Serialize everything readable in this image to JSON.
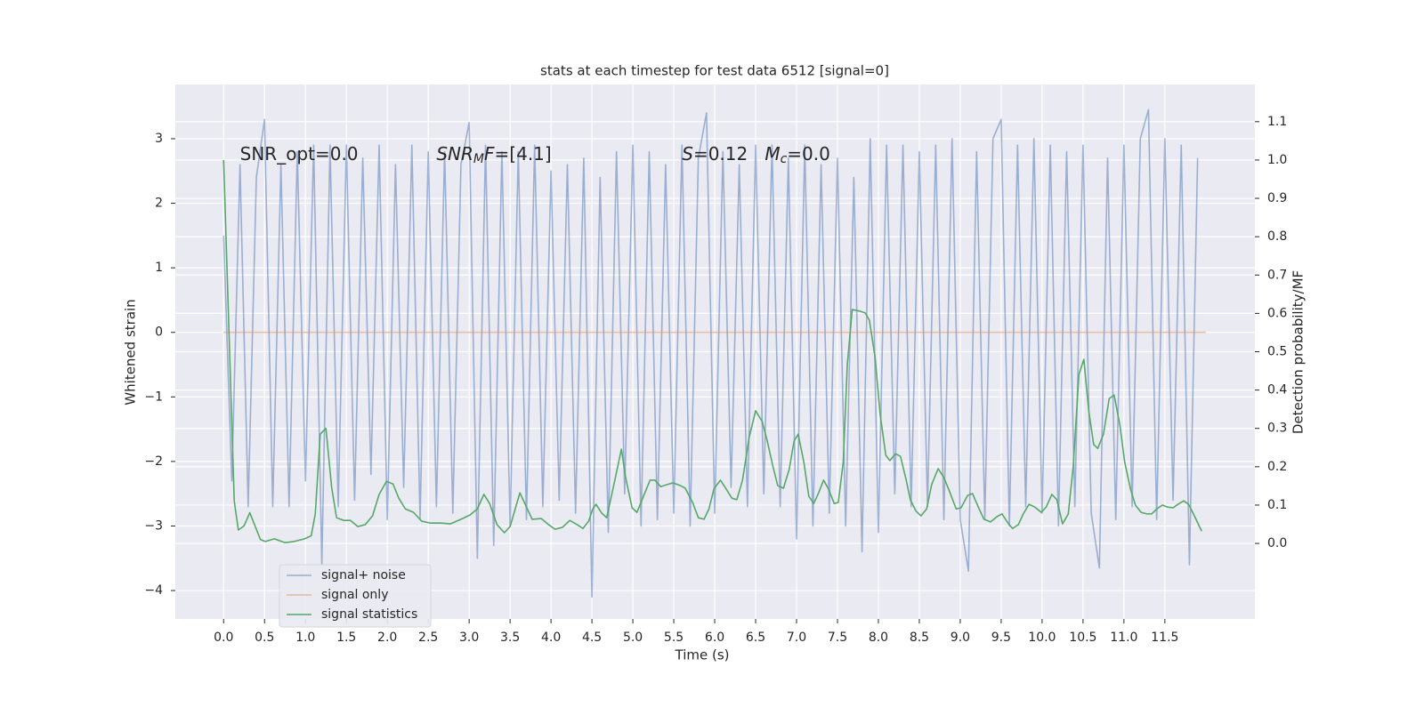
{
  "chart_data": {
    "type": "line",
    "title": "stats at each timestep for test data 6512 [signal=0]",
    "xlabel": "Time (s)",
    "ylabel": "Whitened strain",
    "y2label": "Detection probability/MF",
    "xlim": [
      -0.59,
      12.6
    ],
    "ylim": [
      -4.44,
      3.84
    ],
    "y2lim": [
      -0.197,
      1.197
    ],
    "xticks": [
      {
        "value": 0,
        "label": "0.0"
      },
      0.5,
      {
        "value": 1,
        "label": "1.0"
      },
      1.5,
      {
        "value": 2,
        "label": "2.0"
      },
      2.5,
      {
        "value": 3,
        "label": "3.0"
      },
      3.5,
      {
        "value": 4,
        "label": "4.0"
      },
      4.5,
      {
        "value": 5,
        "label": "5.0"
      },
      5.5,
      {
        "value": 6,
        "label": "6.0"
      },
      6.5,
      {
        "value": 7,
        "label": "7.0"
      },
      7.5,
      {
        "value": 8,
        "label": "8.0"
      },
      8.5,
      {
        "value": 9,
        "label": "9.0"
      },
      9.5,
      {
        "value": 10,
        "label": "10.0"
      },
      10.5,
      {
        "value": 11,
        "label": "11.0"
      },
      11.5
    ],
    "yticks": [
      {
        "value": -4,
        "label": "−4"
      },
      {
        "value": -3,
        "label": "−3"
      },
      {
        "value": -2,
        "label": "−2"
      },
      {
        "value": -1,
        "label": "−1"
      },
      0,
      1,
      2,
      3
    ],
    "y2ticks": [
      {
        "value": 0,
        "label": "0.0"
      },
      0.1,
      0.2,
      0.3,
      0.4,
      0.5,
      0.6,
      0.7,
      0.8,
      0.9,
      {
        "value": 1,
        "label": "1.0"
      },
      1.1
    ],
    "grid": true,
    "legend": "lower left",
    "annotations": [
      {
        "x": 0.2,
        "y": 2.75,
        "parts": [
          {
            "text": "SNR_opt=0.0",
            "style": "normal"
          }
        ]
      },
      {
        "x": 2.6,
        "y": 2.75,
        "parts": [
          {
            "text": "SNR",
            "style": "italic"
          },
          {
            "text": "M",
            "style": "sub"
          },
          {
            "text": "F",
            "style": "italic"
          },
          {
            "text": "=[4.1]",
            "style": "normal"
          }
        ]
      },
      {
        "x": 5.6,
        "y": 2.75,
        "parts": [
          {
            "text": "S",
            "style": "italic"
          },
          {
            "text": "=0.12   ",
            "style": "normal"
          },
          {
            "text": "M",
            "style": "italic"
          },
          {
            "text": "c",
            "style": "sub"
          },
          {
            "text": "=0.0",
            "style": "normal"
          }
        ]
      }
    ],
    "series": [
      {
        "name": "signal+ noise",
        "color": "#4c72b0",
        "opacity": 0.5,
        "x": [
          0.0,
          0.1,
          0.2,
          0.3,
          0.4,
          0.5,
          0.6,
          0.7,
          0.8,
          0.9,
          1.0,
          1.1,
          1.2,
          1.3,
          1.4,
          1.5,
          1.6,
          1.7,
          1.8,
          1.9,
          2.0,
          2.1,
          2.2,
          2.3,
          2.4,
          2.5,
          2.6,
          2.7,
          2.8,
          2.9,
          3.0,
          3.1,
          3.2,
          3.3,
          3.4,
          3.5,
          3.6,
          3.7,
          3.8,
          3.9,
          4.0,
          4.1,
          4.2,
          4.3,
          4.4,
          4.5,
          4.6,
          4.7,
          4.8,
          4.9,
          5.0,
          5.1,
          5.2,
          5.3,
          5.4,
          5.5,
          5.6,
          5.7,
          5.8,
          5.9,
          6.0,
          6.1,
          6.2,
          6.3,
          6.4,
          6.5,
          6.6,
          6.7,
          6.8,
          6.9,
          7.0,
          7.1,
          7.2,
          7.3,
          7.4,
          7.5,
          7.6,
          7.7,
          7.8,
          7.9,
          8.0,
          8.1,
          8.2,
          8.3,
          8.4,
          8.5,
          8.6,
          8.7,
          8.8,
          8.9,
          9.0,
          9.1,
          9.2,
          9.3,
          9.4,
          9.5,
          9.6,
          9.7,
          9.8,
          9.9,
          10.0,
          10.1,
          10.2,
          10.3,
          10.4,
          10.5,
          10.6,
          10.7,
          10.8,
          10.9,
          11.0,
          11.1,
          11.2,
          11.3,
          11.4,
          11.5,
          11.6,
          11.7,
          11.8,
          11.9
        ],
        "values": [
          1.5,
          -2.3,
          2.6,
          -2.7,
          2.4,
          3.3,
          -2.7,
          2.6,
          -2.7,
          2.8,
          -2.3,
          2.9,
          -3.6,
          2.9,
          -2.7,
          2.9,
          -2.6,
          2.7,
          -2.2,
          2.9,
          -2.9,
          2.6,
          -2.4,
          2.9,
          -2.9,
          2.8,
          -2.7,
          2.8,
          -2.8,
          2.6,
          3.25,
          -3.5,
          2.9,
          -3.3,
          2.8,
          -3.0,
          2.8,
          -2.9,
          2.9,
          -2.7,
          2.5,
          -2.6,
          2.6,
          -2.8,
          2.7,
          -4.1,
          2.4,
          -3.1,
          2.8,
          -2.5,
          2.9,
          -3.0,
          2.8,
          -2.9,
          2.6,
          -2.8,
          2.9,
          -3.0,
          2.7,
          3.4,
          -2.8,
          2.8,
          -2.4,
          2.6,
          -2.7,
          2.9,
          -2.5,
          2.9,
          -2.7,
          2.7,
          -3.2,
          2.9,
          -3.0,
          2.6,
          -2.8,
          2.7,
          -3.0,
          2.4,
          -3.4,
          3.0,
          -3.1,
          2.9,
          -2.5,
          2.9,
          -2.7,
          2.8,
          -2.7,
          2.9,
          -2.9,
          3.0,
          -2.9,
          -3.7,
          2.8,
          -2.9,
          3.0,
          3.3,
          -3.0,
          2.9,
          -2.7,
          3.0,
          -2.8,
          2.9,
          -3.0,
          2.8,
          -2.7,
          2.9,
          -2.8,
          -3.65,
          2.7,
          -2.9,
          2.9,
          -2.7,
          3.0,
          3.45,
          -2.9,
          3.0,
          -2.6,
          2.9,
          -3.6,
          2.7
        ]
      },
      {
        "name": "signal only",
        "color": "#dd8452",
        "opacity": 0.5,
        "x": [
          0,
          12
        ],
        "values": [
          0,
          0
        ]
      },
      {
        "name": "signal statistics",
        "color": "#55a868",
        "opacity": 1,
        "axis": "y2",
        "x": [
          0,
          0.13,
          0.18,
          0.25,
          0.32,
          0.45,
          0.51,
          0.62,
          0.75,
          0.86,
          0.99,
          1.07,
          1.12,
          1.18,
          1.25,
          1.32,
          1.38,
          1.47,
          1.55,
          1.64,
          1.73,
          1.82,
          1.9,
          1.99,
          2.07,
          2.14,
          2.22,
          2.32,
          2.42,
          2.53,
          2.66,
          2.77,
          2.9,
          3.01,
          3.1,
          3.18,
          3.25,
          3.34,
          3.43,
          3.5,
          3.62,
          3.7,
          3.77,
          3.88,
          3.97,
          4.05,
          4.14,
          4.23,
          4.32,
          4.39,
          4.46,
          4.51,
          4.55,
          4.62,
          4.68,
          4.77,
          4.86,
          4.91,
          4.99,
          5.05,
          5.13,
          5.21,
          5.27,
          5.34,
          5.41,
          5.49,
          5.58,
          5.64,
          5.73,
          5.8,
          5.87,
          5.93,
          5.99,
          6.07,
          6.14,
          6.21,
          6.27,
          6.34,
          6.42,
          6.5,
          6.58,
          6.64,
          6.71,
          6.77,
          6.84,
          6.91,
          6.97,
          7.02,
          7.09,
          7.15,
          7.21,
          7.27,
          7.33,
          7.39,
          7.46,
          7.51,
          7.57,
          7.62,
          7.68,
          7.77,
          7.84,
          7.89,
          7.96,
          8.02,
          8.09,
          8.14,
          8.21,
          8.27,
          8.34,
          8.39,
          8.46,
          8.52,
          8.59,
          8.65,
          8.73,
          8.8,
          8.87,
          8.95,
          9.01,
          9.09,
          9.15,
          9.22,
          9.29,
          9.37,
          9.45,
          9.51,
          9.59,
          9.64,
          9.71,
          9.77,
          9.84,
          9.91,
          9.99,
          10.05,
          10.12,
          10.18,
          10.25,
          10.32,
          10.38,
          10.45,
          10.51,
          10.57,
          10.63,
          10.68,
          10.75,
          10.82,
          10.88,
          10.95,
          11.01,
          11.08,
          11.14,
          11.21,
          11.28,
          11.34,
          11.4,
          11.47,
          11.53,
          11.6,
          11.66,
          11.73,
          11.79,
          11.86,
          11.95
        ],
        "values": [
          1.0,
          0.11,
          0.035,
          0.046,
          0.08,
          0.01,
          0.005,
          0.012,
          0.002,
          0.005,
          0.012,
          0.02,
          0.077,
          0.285,
          0.3,
          0.146,
          0.067,
          0.06,
          0.06,
          0.044,
          0.049,
          0.072,
          0.128,
          0.162,
          0.155,
          0.118,
          0.09,
          0.081,
          0.058,
          0.053,
          0.053,
          0.051,
          0.063,
          0.074,
          0.09,
          0.128,
          0.104,
          0.049,
          0.028,
          0.044,
          0.132,
          0.095,
          0.063,
          0.065,
          0.049,
          0.037,
          0.042,
          0.06,
          0.049,
          0.039,
          0.058,
          0.09,
          0.102,
          0.079,
          0.067,
          0.155,
          0.246,
          0.174,
          0.093,
          0.081,
          0.123,
          0.165,
          0.165,
          0.148,
          0.153,
          0.158,
          0.151,
          0.144,
          0.107,
          0.067,
          0.063,
          0.09,
          0.142,
          0.165,
          0.142,
          0.118,
          0.114,
          0.165,
          0.276,
          0.346,
          0.318,
          0.269,
          0.202,
          0.151,
          0.144,
          0.193,
          0.267,
          0.285,
          0.211,
          0.123,
          0.104,
          0.132,
          0.165,
          0.142,
          0.104,
          0.107,
          0.211,
          0.466,
          0.61,
          0.606,
          0.601,
          0.582,
          0.485,
          0.339,
          0.23,
          0.216,
          0.234,
          0.227,
          0.165,
          0.114,
          0.084,
          0.072,
          0.09,
          0.153,
          0.195,
          0.172,
          0.135,
          0.09,
          0.093,
          0.125,
          0.13,
          0.095,
          0.063,
          0.056,
          0.07,
          0.077,
          0.051,
          0.039,
          0.049,
          0.077,
          0.102,
          0.095,
          0.081,
          0.095,
          0.128,
          0.114,
          0.051,
          0.077,
          0.2,
          0.441,
          0.48,
          0.346,
          0.258,
          0.248,
          0.285,
          0.378,
          0.387,
          0.309,
          0.211,
          0.142,
          0.1,
          0.081,
          0.077,
          0.077,
          0.09,
          0.1,
          0.095,
          0.093,
          0.102,
          0.111,
          0.102,
          0.072,
          0.032
        ]
      }
    ]
  }
}
